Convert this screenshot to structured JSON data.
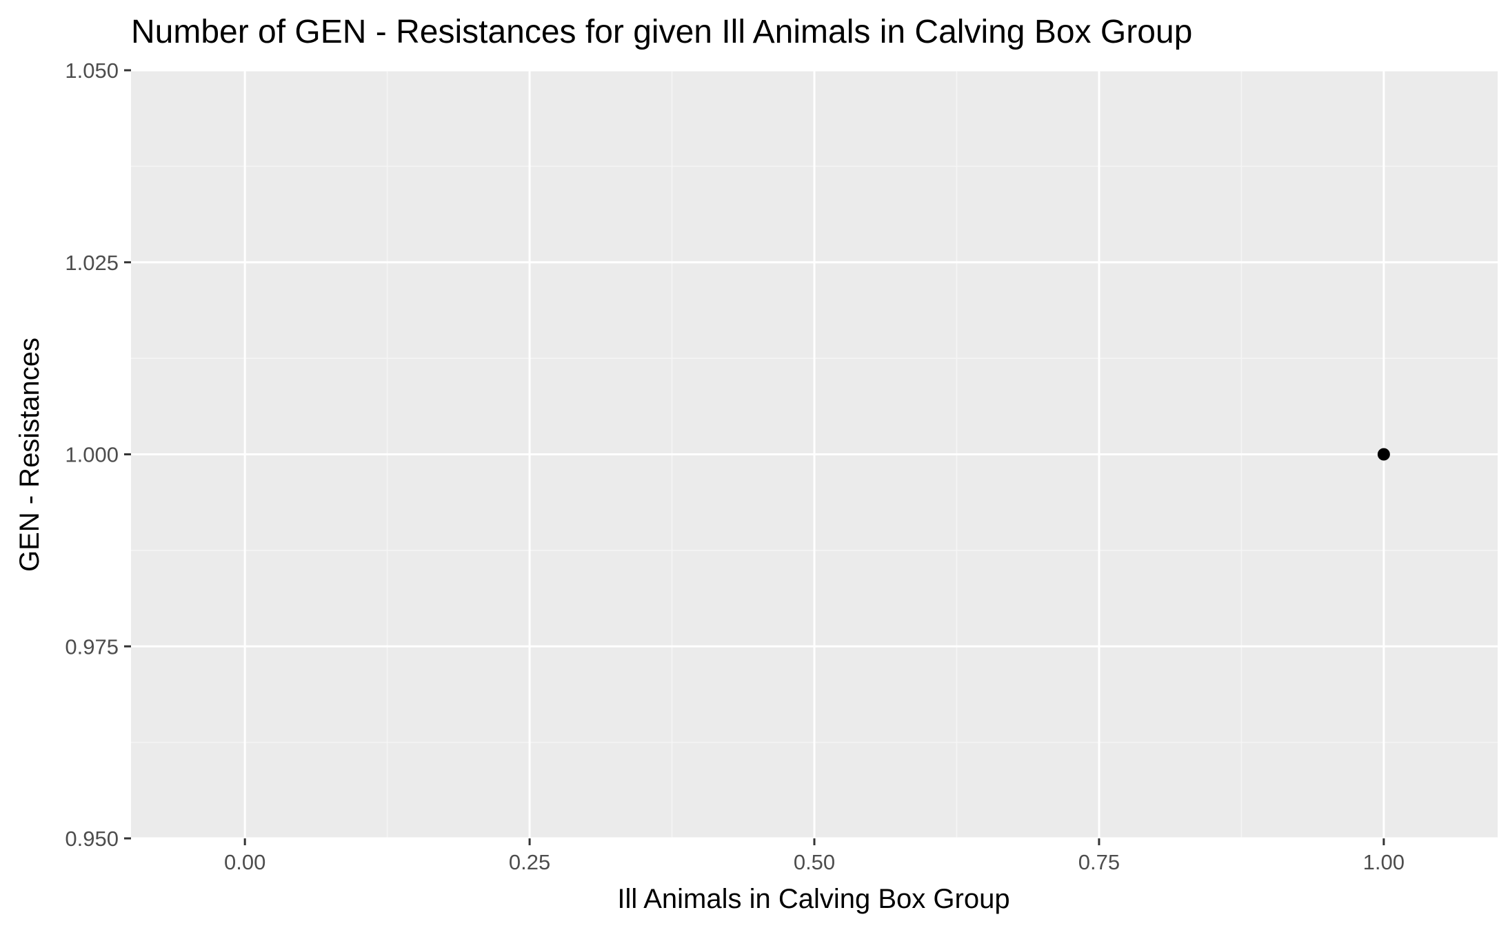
{
  "chart_data": {
    "type": "scatter",
    "title": "Number of GEN - Resistances for given Ill Animals in Calving Box Group",
    "xlabel": "Ill Animals in Calving Box Group",
    "ylabel": "GEN - Resistances",
    "xlim": [
      -0.1,
      1.1
    ],
    "ylim": [
      0.95,
      1.05
    ],
    "x_ticks": [
      0.0,
      0.25,
      0.5,
      0.75,
      1.0
    ],
    "x_tick_labels": [
      "0.00",
      "0.25",
      "0.50",
      "0.75",
      "1.00"
    ],
    "y_ticks": [
      0.95,
      0.975,
      1.0,
      1.025,
      1.05
    ],
    "y_tick_labels": [
      "0.950",
      "0.975",
      "1.000",
      "1.025",
      "1.050"
    ],
    "grid": true,
    "points": [
      {
        "x": 1.0,
        "y": 1.0
      }
    ],
    "colors": {
      "panel_background": "#ebebeb",
      "grid_major": "#ffffff",
      "grid_minor": "#f5f5f5",
      "point": "#000000",
      "tick": "#333333"
    }
  }
}
